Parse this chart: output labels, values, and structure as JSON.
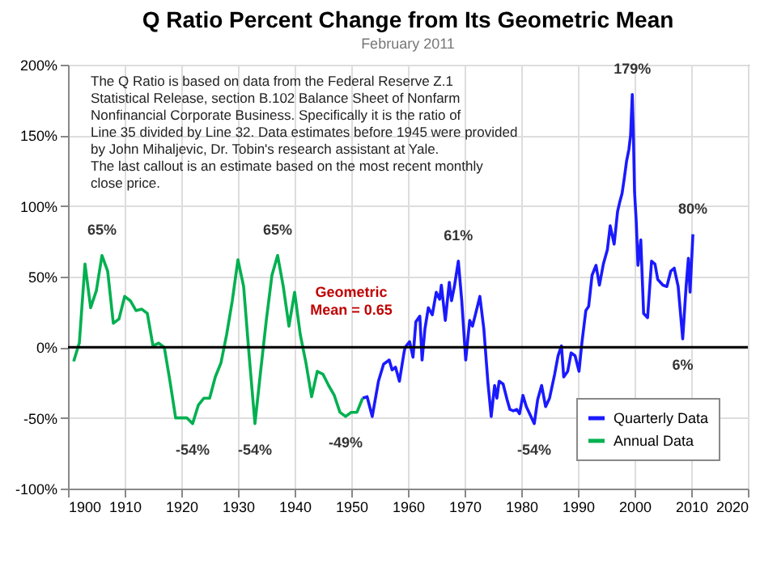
{
  "chart_data": {
    "type": "line",
    "title": "Q Ratio Percent Change from Its Geometric Mean",
    "subtitle": "February 2011",
    "xlim": [
      1900,
      2020
    ],
    "xticks": [
      1900,
      1910,
      1920,
      1930,
      1940,
      1950,
      1960,
      1970,
      1980,
      1990,
      2000,
      2010,
      2020
    ],
    "ylim": [
      -100,
      200
    ],
    "yticks": [
      {
        "value": -100,
        "label": "-100%"
      },
      {
        "value": -50,
        "label": "-50%"
      },
      {
        "value": 0,
        "label": "0%"
      },
      {
        "value": 50,
        "label": "50%"
      },
      {
        "value": 100,
        "label": "100%"
      },
      {
        "value": 150,
        "label": "150%"
      },
      {
        "value": 200,
        "label": "200%"
      }
    ],
    "grid": true,
    "legend": "bottom right",
    "line_style": "solid",
    "marker": "none",
    "ref_lines": [
      {
        "axis": "y",
        "value": 0,
        "color": "#000000"
      }
    ],
    "annotations": [
      "The Q Ratio is based on data from the Federal Reserve Z.1 Statistical Release, section B.102 Balance Sheet of Nonfarm Nonfinancial Corporate Business. Specifically it is the ratio of Line 35 divided by Line 32. Data estimates before 1945 were provided by John Mihaljevic, Dr. Tobin's research assistant at Yale.",
      "The last callout is an estimate based on the most recent monthly close price.",
      {
        "text": "65%",
        "x": 1906,
        "y": 65
      },
      {
        "text": "-54%",
        "x": 1922,
        "y": -54
      },
      {
        "text": "-54%",
        "x": 1933,
        "y": -54
      },
      {
        "text": "65%",
        "x": 1937,
        "y": 65
      },
      {
        "text": "-49%",
        "x": 1949,
        "y": -49
      },
      {
        "text": "Geometric Mean = 0.65",
        "x": 1950,
        "y": 0
      },
      {
        "text": "61%",
        "x": 1968.9,
        "y": 61
      },
      {
        "text": "-54%",
        "x": 1982.3,
        "y": -54
      },
      {
        "text": "179%",
        "x": 1999.6,
        "y": 179
      },
      {
        "text": "6%",
        "x": 2008.5,
        "y": 6
      },
      {
        "text": "80%",
        "x": 2010.3,
        "y": 80
      }
    ],
    "series": [
      {
        "name": "Quarterly Data",
        "color": "#1a1aff",
        "x": [
          1952,
          1952.8,
          1953.7,
          1954.8,
          1955.7,
          1956.7,
          1957.2,
          1957.8,
          1958.5,
          1959.3,
          1959.5,
          1960.3,
          1960.9,
          1961.4,
          1962.1,
          1962.5,
          1963,
          1963.6,
          1964.3,
          1965,
          1965.6,
          1965.9,
          1966.6,
          1967.3,
          1967.7,
          1968.2,
          1968.9,
          1969.5,
          1970.2,
          1970.9,
          1971.4,
          1971.9,
          1972.7,
          1973.4,
          1974.1,
          1974.7,
          1975.3,
          1975.7,
          1976.1,
          1976.8,
          1977.5,
          1978,
          1978.6,
          1979.2,
          1979.7,
          1980.3,
          1980.9,
          1981.6,
          1982.3,
          1982.9,
          1983.6,
          1984.3,
          1985,
          1985.9,
          1986.5,
          1987.1,
          1987.5,
          1988.2,
          1988.8,
          1989.5,
          1990.2,
          1990.7,
          1991.4,
          1991.9,
          1992.5,
          1993.2,
          1993.8,
          1994.5,
          1995.2,
          1995.7,
          1996.4,
          1997,
          1997.4,
          1997.8,
          1998.2,
          1998.6,
          1999,
          1999.3,
          1999.6,
          1999.8,
          2000,
          2000.3,
          2000.6,
          2001.1,
          2001.6,
          2002.3,
          2003,
          2003.6,
          2004.1,
          2005,
          2005.7,
          2006.4,
          2007,
          2007.7,
          2008.5,
          2009.1,
          2009.5,
          2009.8,
          2010.3
        ],
        "values": [
          -36,
          -35,
          -49,
          -24,
          -12,
          -9,
          -16,
          -14,
          -24,
          -4,
          0,
          4,
          -7,
          18,
          22,
          -9,
          13,
          28,
          23,
          39,
          34,
          44,
          19,
          46,
          33,
          43,
          61,
          33,
          -9,
          19,
          15,
          23,
          36,
          13,
          -24,
          -49,
          -27,
          -36,
          -24,
          -26,
          -37,
          -44,
          -45,
          -44,
          -47,
          -34,
          -42,
          -48,
          -54,
          -37,
          -27,
          -42,
          -36,
          -19,
          -6,
          1,
          -21,
          -17,
          -4,
          -6,
          -17,
          3,
          26,
          29,
          51,
          58,
          44,
          59,
          69,
          86,
          73,
          96,
          103,
          109,
          120,
          132,
          140,
          150,
          179,
          150,
          110,
          89,
          58,
          76,
          24,
          21,
          61,
          59,
          48,
          44,
          43,
          54,
          56,
          43,
          6,
          43,
          63,
          39,
          80
        ]
      },
      {
        "name": "Annual Data",
        "color": "#00b050",
        "x": [
          1901,
          1902,
          1903,
          1904,
          1905,
          1906,
          1907,
          1908,
          1909,
          1910,
          1911,
          1912,
          1913,
          1914,
          1915,
          1916,
          1917,
          1918,
          1919,
          1920,
          1921,
          1922,
          1923,
          1924,
          1925,
          1926,
          1927,
          1928,
          1929,
          1930,
          1931,
          1932,
          1933,
          1934,
          1935,
          1936,
          1937,
          1938,
          1939,
          1940,
          1941,
          1942,
          1943,
          1944,
          1945,
          1946,
          1947,
          1948,
          1949,
          1950,
          1951,
          1952
        ],
        "values": [
          -10,
          3,
          59,
          28,
          40,
          65,
          54,
          17,
          20,
          36,
          33,
          26,
          27,
          24,
          1,
          3,
          0,
          -24,
          -50,
          -50,
          -50,
          -54,
          -41,
          -36,
          -36,
          -21,
          -11,
          9,
          33,
          62,
          43,
          -7,
          -54,
          -17,
          19,
          51,
          65,
          43,
          15,
          39,
          9,
          -11,
          -35,
          -17,
          -19,
          -27,
          -34,
          -46,
          -49,
          -46,
          -46,
          -36
        ]
      }
    ]
  }
}
